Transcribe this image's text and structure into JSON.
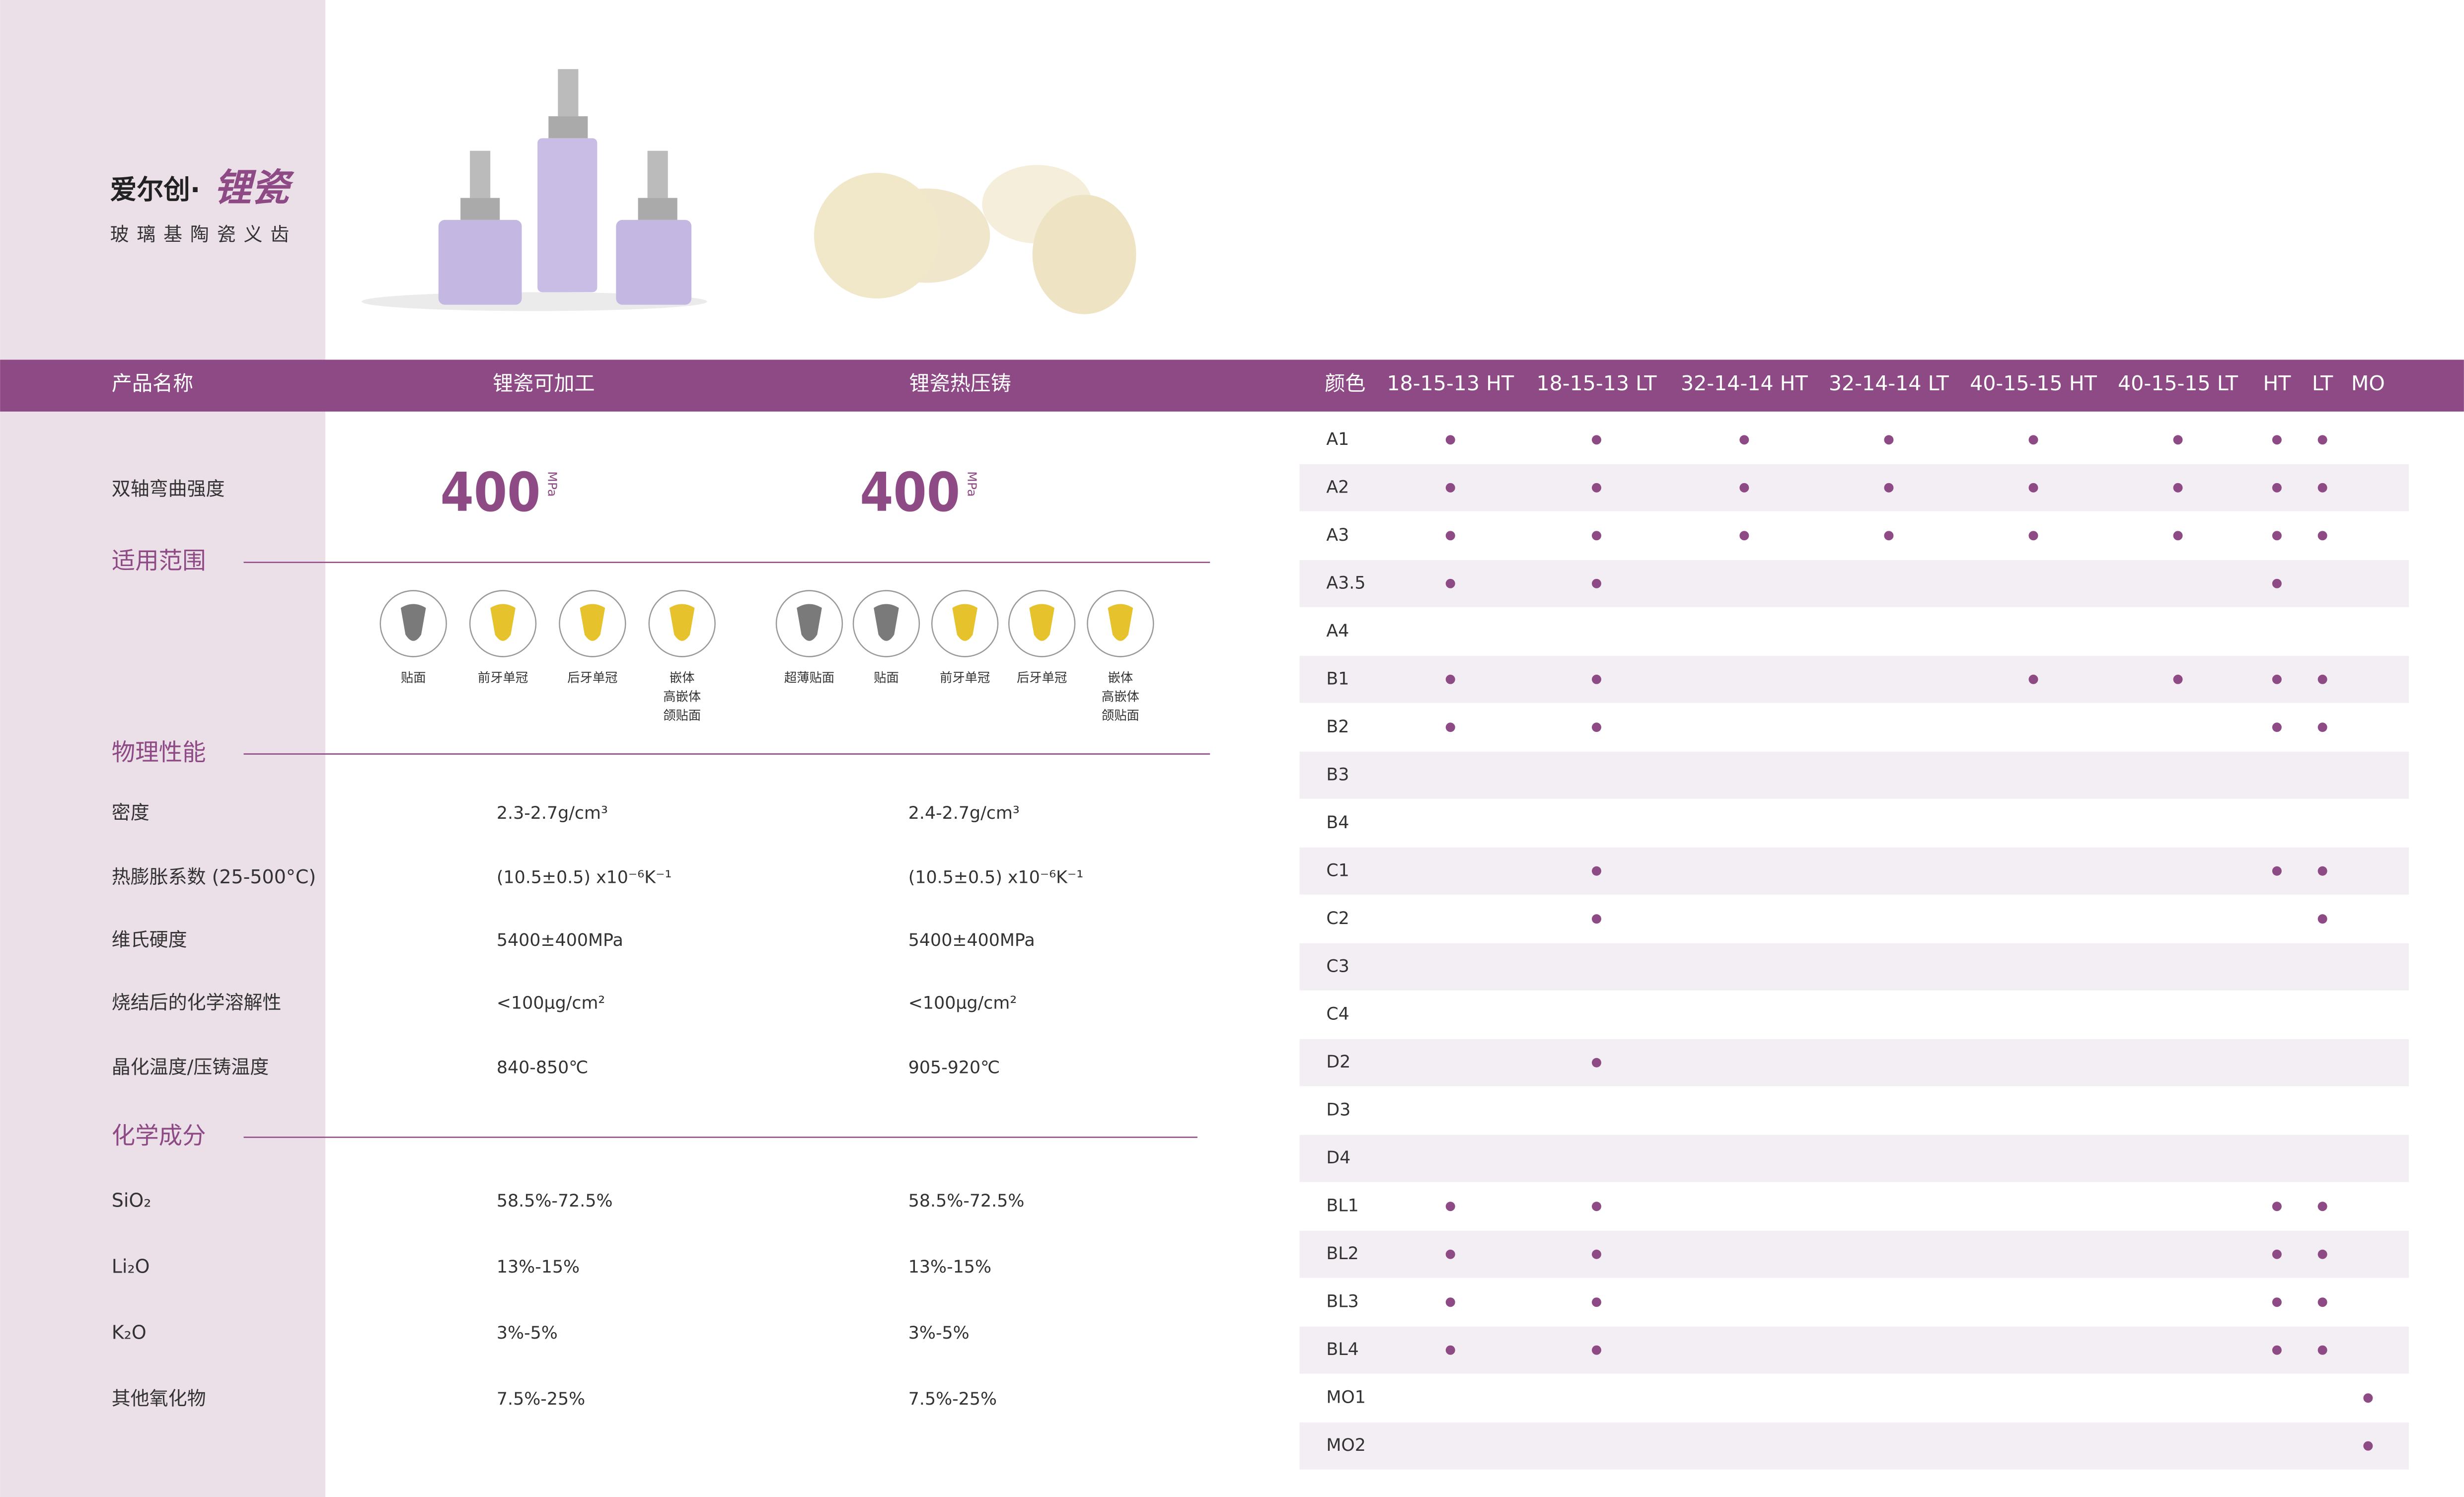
{
  "header": {
    "brand": "爱尔创·",
    "brand_product": "锂瓷",
    "subtitle": "玻璃基陶瓷义齿"
  },
  "spec_table": {
    "columns": [
      "产品名称",
      "锂瓷可加工",
      "锂瓷热压铸"
    ],
    "strength": {
      "label": "双轴弯曲强度",
      "values": [
        400,
        400
      ],
      "unit": "MPa"
    },
    "indications": {
      "title": "适用范围",
      "machinable": [
        [
          "贴面"
        ],
        [
          "前牙单冠"
        ],
        [
          "后牙单冠"
        ],
        [
          "嵌体",
          "高嵌体",
          "颌贴面"
        ]
      ],
      "pressable": [
        [
          "超薄贴面"
        ],
        [
          "贴面"
        ],
        [
          "前牙单冠"
        ],
        [
          "后牙单冠"
        ],
        [
          "嵌体",
          "高嵌体",
          "颌贴面"
        ]
      ]
    },
    "physical": {
      "title": "物理性能",
      "rows": [
        [
          "密度",
          "2.3-2.7g/cm³",
          "2.4-2.7g/cm³"
        ],
        [
          "热膨胀系数 (25-500°C)",
          "(10.5±0.5) x10⁻⁶K⁻¹",
          "(10.5±0.5) x10⁻⁶K⁻¹"
        ],
        [
          "维氏硬度",
          "5400±400MPa",
          "5400±400MPa"
        ],
        [
          "烧结后的化学溶解性",
          "<100μg/cm²",
          "<100μg/cm²"
        ],
        [
          "晶化温度/压铸温度",
          "840-850℃",
          "905-920℃"
        ]
      ]
    },
    "chemical": {
      "title": "化学成分",
      "rows": [
        [
          "SiO₂",
          "58.5%-72.5%",
          "58.5%-72.5%"
        ],
        [
          "Li₂O",
          "13%-15%",
          "13%-15%"
        ],
        [
          "K₂O",
          "3%-5%",
          "3%-5%"
        ],
        [
          "其他氧化物",
          "7.5%-25%",
          "7.5%-25%"
        ]
      ]
    }
  },
  "shade_table": {
    "columns": [
      "颜色",
      "18-15-13 HT",
      "18-15-13 LT",
      "32-14-14 HT",
      "32-14-14 LT",
      "40-15-15 HT",
      "40-15-15 LT",
      "HT",
      "LT",
      "MO"
    ],
    "rows": [
      {
        "shade": "A1",
        "available": [
          true,
          true,
          true,
          true,
          true,
          true,
          true,
          true,
          false
        ]
      },
      {
        "shade": "A2",
        "available": [
          true,
          true,
          true,
          true,
          true,
          true,
          true,
          true,
          false
        ]
      },
      {
        "shade": "A3",
        "available": [
          true,
          true,
          true,
          true,
          true,
          true,
          true,
          true,
          false
        ]
      },
      {
        "shade": "A3.5",
        "available": [
          true,
          true,
          false,
          false,
          false,
          false,
          true,
          false,
          false
        ]
      },
      {
        "shade": "A4",
        "available": [
          false,
          false,
          false,
          false,
          false,
          false,
          false,
          false,
          false
        ]
      },
      {
        "shade": "B1",
        "available": [
          true,
          true,
          false,
          false,
          true,
          true,
          true,
          true,
          false
        ]
      },
      {
        "shade": "B2",
        "available": [
          true,
          true,
          false,
          false,
          false,
          false,
          true,
          true,
          false
        ]
      },
      {
        "shade": "B3",
        "available": [
          false,
          false,
          false,
          false,
          false,
          false,
          false,
          false,
          false
        ]
      },
      {
        "shade": "B4",
        "available": [
          false,
          false,
          false,
          false,
          false,
          false,
          false,
          false,
          false
        ]
      },
      {
        "shade": "C1",
        "available": [
          false,
          true,
          false,
          false,
          false,
          false,
          true,
          true,
          false
        ]
      },
      {
        "shade": "C2",
        "available": [
          false,
          true,
          false,
          false,
          false,
          false,
          false,
          true,
          false
        ]
      },
      {
        "shade": "C3",
        "available": [
          false,
          false,
          false,
          false,
          false,
          false,
          false,
          false,
          false
        ]
      },
      {
        "shade": "C4",
        "available": [
          false,
          false,
          false,
          false,
          false,
          false,
          false,
          false,
          false
        ]
      },
      {
        "shade": "D2",
        "available": [
          false,
          true,
          false,
          false,
          false,
          false,
          false,
          false,
          false
        ]
      },
      {
        "shade": "D3",
        "available": [
          false,
          false,
          false,
          false,
          false,
          false,
          false,
          false,
          false
        ]
      },
      {
        "shade": "D4",
        "available": [
          false,
          false,
          false,
          false,
          false,
          false,
          false,
          false,
          false
        ]
      },
      {
        "shade": "BL1",
        "available": [
          true,
          true,
          false,
          false,
          false,
          false,
          true,
          true,
          false
        ]
      },
      {
        "shade": "BL2",
        "available": [
          true,
          true,
          false,
          false,
          false,
          false,
          true,
          true,
          false
        ]
      },
      {
        "shade": "BL3",
        "available": [
          true,
          true,
          false,
          false,
          false,
          false,
          true,
          true,
          false
        ]
      },
      {
        "shade": "BL4",
        "available": [
          true,
          true,
          false,
          false,
          false,
          false,
          true,
          true,
          false
        ]
      },
      {
        "shade": "MO1",
        "available": [
          false,
          false,
          false,
          false,
          false,
          false,
          false,
          false,
          true
        ]
      },
      {
        "shade": "MO2",
        "available": [
          false,
          false,
          false,
          false,
          false,
          false,
          false,
          false,
          true
        ]
      }
    ]
  }
}
